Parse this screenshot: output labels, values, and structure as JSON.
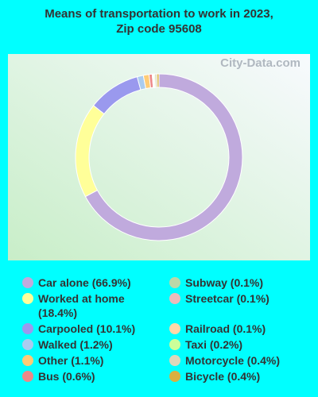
{
  "chart_data": {
    "type": "donut",
    "title": "Means of transportation to work in 2023, Zip code 95608",
    "watermark": "City-Data.com",
    "categories": [
      "Car alone (66.9%)",
      "Worked at home (18.4%)",
      "Carpooled (10.1%)",
      "Walked (1.2%)",
      "Other (1.1%)",
      "Bus (0.6%)",
      "Subway (0.1%)",
      "Streetcar (0.1%)",
      "Railroad (0.1%)",
      "Taxi (0.2%)",
      "Motorcycle (0.4%)",
      "Bicycle (0.4%)"
    ],
    "values": [
      66.9,
      18.4,
      10.1,
      1.2,
      1.1,
      0.6,
      0.1,
      0.1,
      0.1,
      0.2,
      0.4,
      0.4
    ],
    "colors": [
      "#c0aadd",
      "#ffff99",
      "#9a99ee",
      "#aaccf0",
      "#ffcc77",
      "#ee8888",
      "#bbd8a8",
      "#eebbbb",
      "#ffd8a8",
      "#ccff99",
      "#ddd8bb",
      "#d8b040"
    ]
  }
}
